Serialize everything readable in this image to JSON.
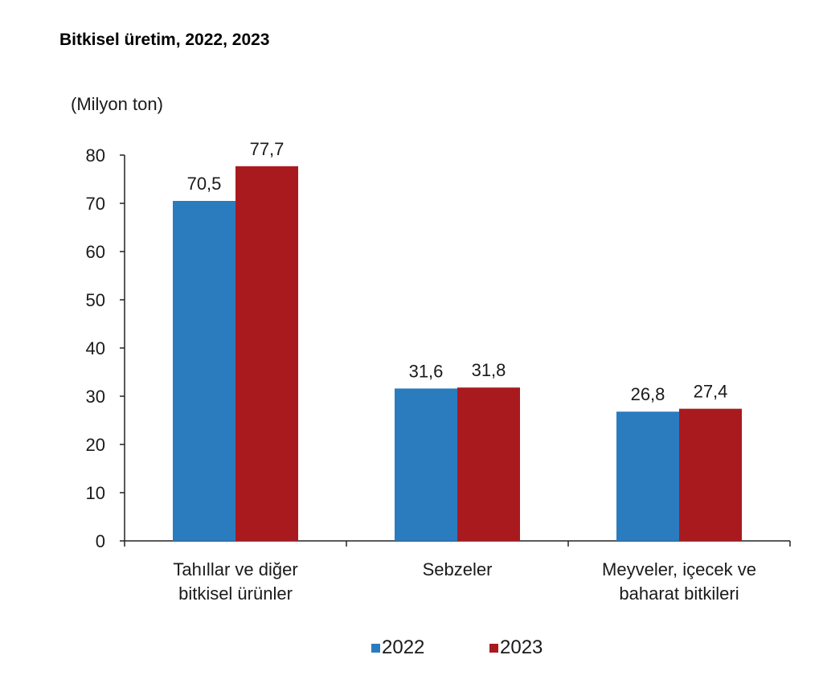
{
  "chart_data": {
    "type": "bar",
    "title": "Bitkisel üretim, 2022, 2023",
    "ylabel": "(Milyon ton)",
    "xlabel": "",
    "ylim": [
      0,
      80
    ],
    "yticks": [
      "0",
      "10",
      "20",
      "30",
      "40",
      "50",
      "60",
      "70",
      "80"
    ],
    "categories": [
      [
        "Tahıllar ve diğer",
        "bitkisel ürünler"
      ],
      [
        "Sebzeler"
      ],
      [
        "Meyveler, içecek ve",
        "baharat  bitkileri"
      ]
    ],
    "series": [
      {
        "name": "2022",
        "color": "#2b7bbf",
        "values": [
          70.5,
          31.6,
          26.8
        ],
        "labels": [
          "70,5",
          "31,6",
          "26,8"
        ]
      },
      {
        "name": "2023",
        "color": "#a91a1f",
        "values": [
          77.7,
          31.8,
          27.4
        ],
        "labels": [
          "77,7",
          "31,8",
          "27,4"
        ]
      }
    ],
    "grid": false,
    "legend": "bottom-center"
  }
}
